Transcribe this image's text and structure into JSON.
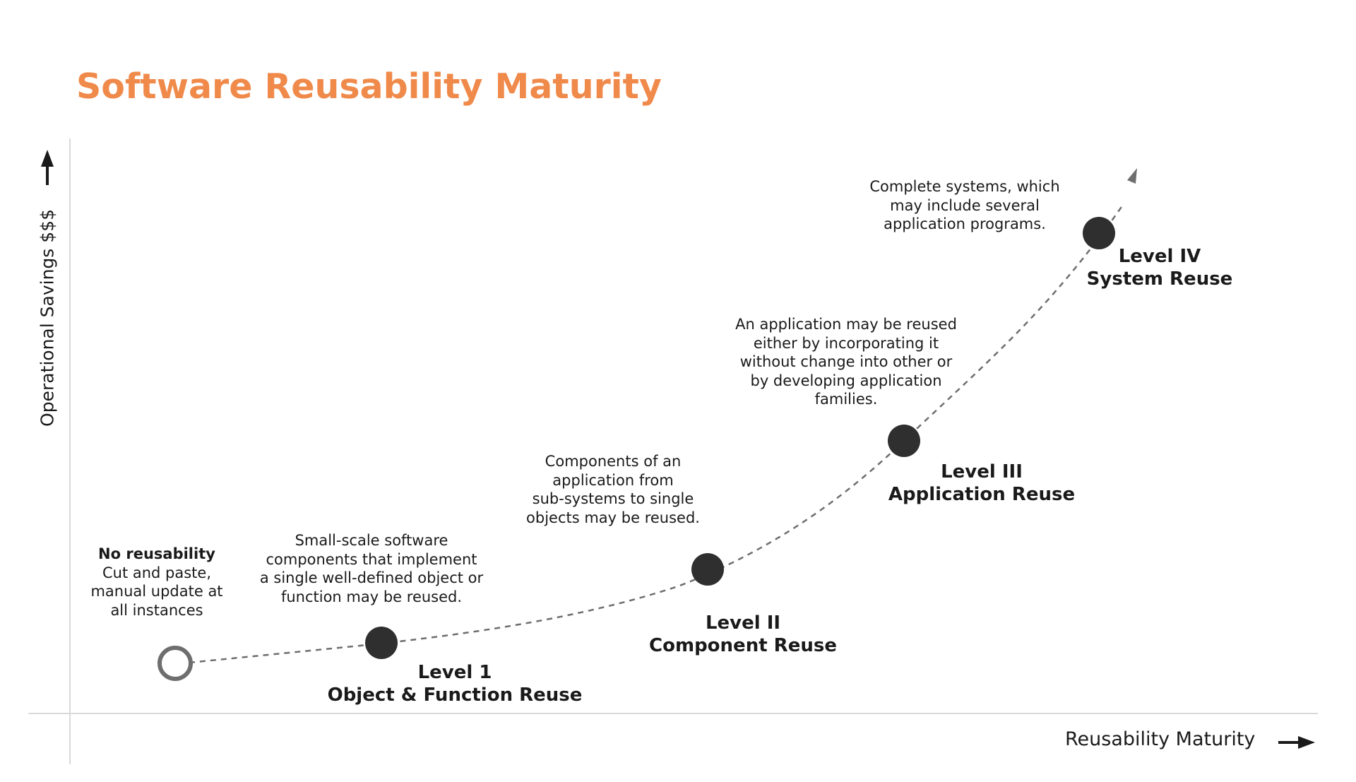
{
  "title": "Software Reusability Maturity",
  "colors": {
    "title": "#f08a4b",
    "text": "#1a1a1a",
    "axis": "#d9d9d9",
    "marker": "#2f2f2f",
    "curve": "#6e6e6e"
  },
  "axes": {
    "y_label": "Operational Savings $$$",
    "x_label": "Reusability Maturity"
  },
  "stages": [
    {
      "title": "No reusability",
      "description": [
        "Cut and paste,",
        "manual update at",
        "all instances"
      ]
    },
    {
      "level": "Level 1",
      "name": "Object & Function Reuse",
      "description": [
        "Small-scale software",
        "components that implement",
        "a single well-defined object or",
        "function may be reused."
      ]
    },
    {
      "level": "Level II",
      "name": "Component Reuse",
      "description": [
        "Components of an",
        "application from",
        "sub-systems to single",
        "objects may be reused."
      ]
    },
    {
      "level": "Level III",
      "name": "Application Reuse",
      "description": [
        "An application may be reused",
        "either by incorporating it",
        "without change into other or",
        "by developing application",
        "families."
      ]
    },
    {
      "level": "Level IV",
      "name": "System Reuse",
      "description": [
        "Complete systems, which",
        "may include several",
        "application programs."
      ]
    }
  ]
}
